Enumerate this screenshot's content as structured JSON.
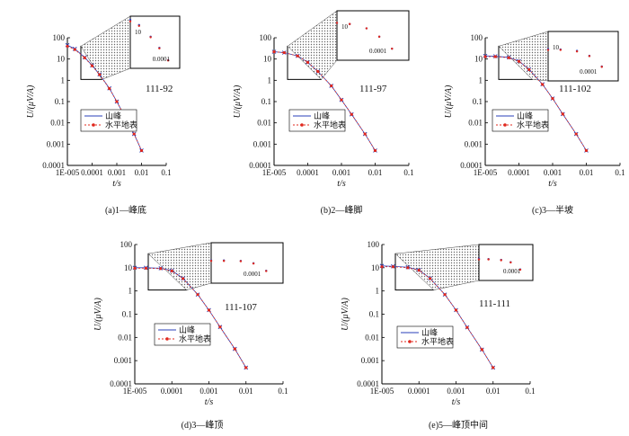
{
  "figure": {
    "legend": {
      "mountain": "山峰",
      "flat": "水平地表"
    },
    "axis": {
      "xlabel": "t/s",
      "ylabel": "U/(μV/A)"
    },
    "xticks": [
      "1E-005",
      "0.0001",
      "0.001",
      "0.01",
      "0.1"
    ],
    "yticks": [
      "0.0001",
      "0.001",
      "0.01",
      "0.1",
      "1",
      "10",
      "100"
    ],
    "colors": {
      "mountain": "#2a3fb8",
      "flat": "#e0281e",
      "axis": "#000000",
      "inset_hatch": "#555555"
    }
  },
  "chart_data": [
    {
      "type": "line",
      "id_label": "111-92",
      "caption": "(a)1—峰底",
      "xlabel": "t/s",
      "ylabel": "U/(μV/A)",
      "xlog": true,
      "ylog": true,
      "xlim": [
        1e-05,
        0.1
      ],
      "ylim": [
        0.0001,
        100
      ],
      "series": [
        {
          "name": "山峰",
          "color": "#2a3fb8",
          "x": [
            1e-05,
            2e-05,
            5e-05,
            0.0001,
            0.0002,
            0.0005,
            0.001,
            0.002,
            0.005,
            0.01
          ],
          "y": [
            45,
            30,
            12,
            5,
            1.9,
            0.42,
            0.1,
            0.022,
            0.003,
            0.0005
          ]
        },
        {
          "name": "水平地表",
          "color": "#e0281e",
          "x": [
            1e-05,
            2e-05,
            5e-05,
            0.0001,
            0.0002,
            0.0005,
            0.001,
            0.002,
            0.005,
            0.01
          ],
          "y": [
            40,
            28,
            11.5,
            4.8,
            1.85,
            0.41,
            0.1,
            0.022,
            0.003,
            0.0005
          ]
        }
      ],
      "inset": {
        "xticks": [
          "0.0001"
        ],
        "yticks": [
          "10"
        ]
      }
    },
    {
      "type": "line",
      "id_label": "111-97",
      "caption": "(b)2—峰脚",
      "xlabel": "t/s",
      "ylabel": "U/(μV/A)",
      "xlog": true,
      "ylog": true,
      "xlim": [
        1e-05,
        0.1
      ],
      "ylim": [
        0.0001,
        100
      ],
      "series": [
        {
          "name": "山峰",
          "color": "#2a3fb8",
          "x": [
            1e-05,
            2e-05,
            5e-05,
            0.0001,
            0.0002,
            0.0005,
            0.001,
            0.002,
            0.005,
            0.01
          ],
          "y": [
            22,
            20,
            14,
            7,
            2.6,
            0.55,
            0.12,
            0.025,
            0.003,
            0.0005
          ]
        },
        {
          "name": "水平地表",
          "color": "#e0281e",
          "x": [
            1e-05,
            2e-05,
            5e-05,
            0.0001,
            0.0002,
            0.0005,
            0.001,
            0.002,
            0.005,
            0.01
          ],
          "y": [
            22,
            20,
            14,
            7,
            2.6,
            0.55,
            0.12,
            0.025,
            0.003,
            0.0005
          ]
        }
      ],
      "inset": {
        "xticks": [
          "0.0001"
        ],
        "yticks": [
          "10"
        ]
      }
    },
    {
      "type": "line",
      "id_label": "111-102",
      "caption": "(c)3—半坡",
      "xlabel": "t/s",
      "ylabel": "U/(μV/A)",
      "xlog": true,
      "ylog": true,
      "xlim": [
        1e-05,
        0.1
      ],
      "ylim": [
        0.0001,
        100
      ],
      "series": [
        {
          "name": "山峰",
          "color": "#2a3fb8",
          "x": [
            1e-05,
            2e-05,
            5e-05,
            0.0001,
            0.0002,
            0.0005,
            0.001,
            0.002,
            0.005,
            0.01
          ],
          "y": [
            14,
            13.5,
            12,
            8,
            3.3,
            0.65,
            0.14,
            0.026,
            0.003,
            0.0005
          ]
        },
        {
          "name": "水平地表",
          "color": "#e0281e",
          "x": [
            1e-05,
            2e-05,
            5e-05,
            0.0001,
            0.0002,
            0.0005,
            0.001,
            0.002,
            0.005,
            0.01
          ],
          "y": [
            13,
            13,
            11.5,
            7.8,
            3.2,
            0.64,
            0.14,
            0.026,
            0.003,
            0.0005
          ]
        }
      ],
      "inset": {
        "xticks": [
          "0.0001"
        ],
        "yticks": [
          "10"
        ]
      }
    },
    {
      "type": "line",
      "id_label": "111-107",
      "caption": "(d)3—峰顶",
      "xlabel": "t/s",
      "ylabel": "U/(μV/A)",
      "xlog": true,
      "ylog": true,
      "xlim": [
        1e-05,
        0.1
      ],
      "ylim": [
        0.0001,
        100
      ],
      "series": [
        {
          "name": "山峰",
          "color": "#2a3fb8",
          "x": [
            1e-05,
            2e-05,
            5e-05,
            0.0001,
            0.0002,
            0.0005,
            0.001,
            0.002,
            0.005,
            0.01
          ],
          "y": [
            10,
            10,
            9.5,
            7.5,
            3.5,
            0.7,
            0.15,
            0.028,
            0.0032,
            0.0005
          ]
        },
        {
          "name": "水平地表",
          "color": "#e0281e",
          "x": [
            1e-05,
            2e-05,
            5e-05,
            0.0001,
            0.0002,
            0.0005,
            0.001,
            0.002,
            0.005,
            0.01
          ],
          "y": [
            9.5,
            9.5,
            9.2,
            7.3,
            3.4,
            0.7,
            0.15,
            0.028,
            0.0032,
            0.0005
          ]
        }
      ],
      "inset": {
        "xticks": [
          "0.0001"
        ],
        "yticks": []
      }
    },
    {
      "type": "line",
      "id_label": "111-111",
      "caption": "(e)5—峰顶中间",
      "xlabel": "t/s",
      "ylabel": "U/(μV/A)",
      "xlog": true,
      "ylog": true,
      "xlim": [
        1e-05,
        0.1
      ],
      "ylim": [
        0.0001,
        100
      ],
      "series": [
        {
          "name": "山峰",
          "color": "#2a3fb8",
          "x": [
            1e-05,
            2e-05,
            5e-05,
            0.0001,
            0.0002,
            0.0005,
            0.001,
            0.002,
            0.005,
            0.01
          ],
          "y": [
            12,
            11.5,
            10.5,
            8,
            3.5,
            0.7,
            0.15,
            0.027,
            0.003,
            0.0005
          ]
        },
        {
          "name": "水平地表",
          "color": "#e0281e",
          "x": [
            1e-05,
            2e-05,
            5e-05,
            0.0001,
            0.0002,
            0.0005,
            0.001,
            0.002,
            0.005,
            0.01
          ],
          "y": [
            11,
            11,
            10,
            7.8,
            3.4,
            0.7,
            0.15,
            0.027,
            0.003,
            0.0005
          ]
        }
      ],
      "inset": {
        "xticks": [
          "0.0001"
        ],
        "yticks": []
      }
    }
  ]
}
